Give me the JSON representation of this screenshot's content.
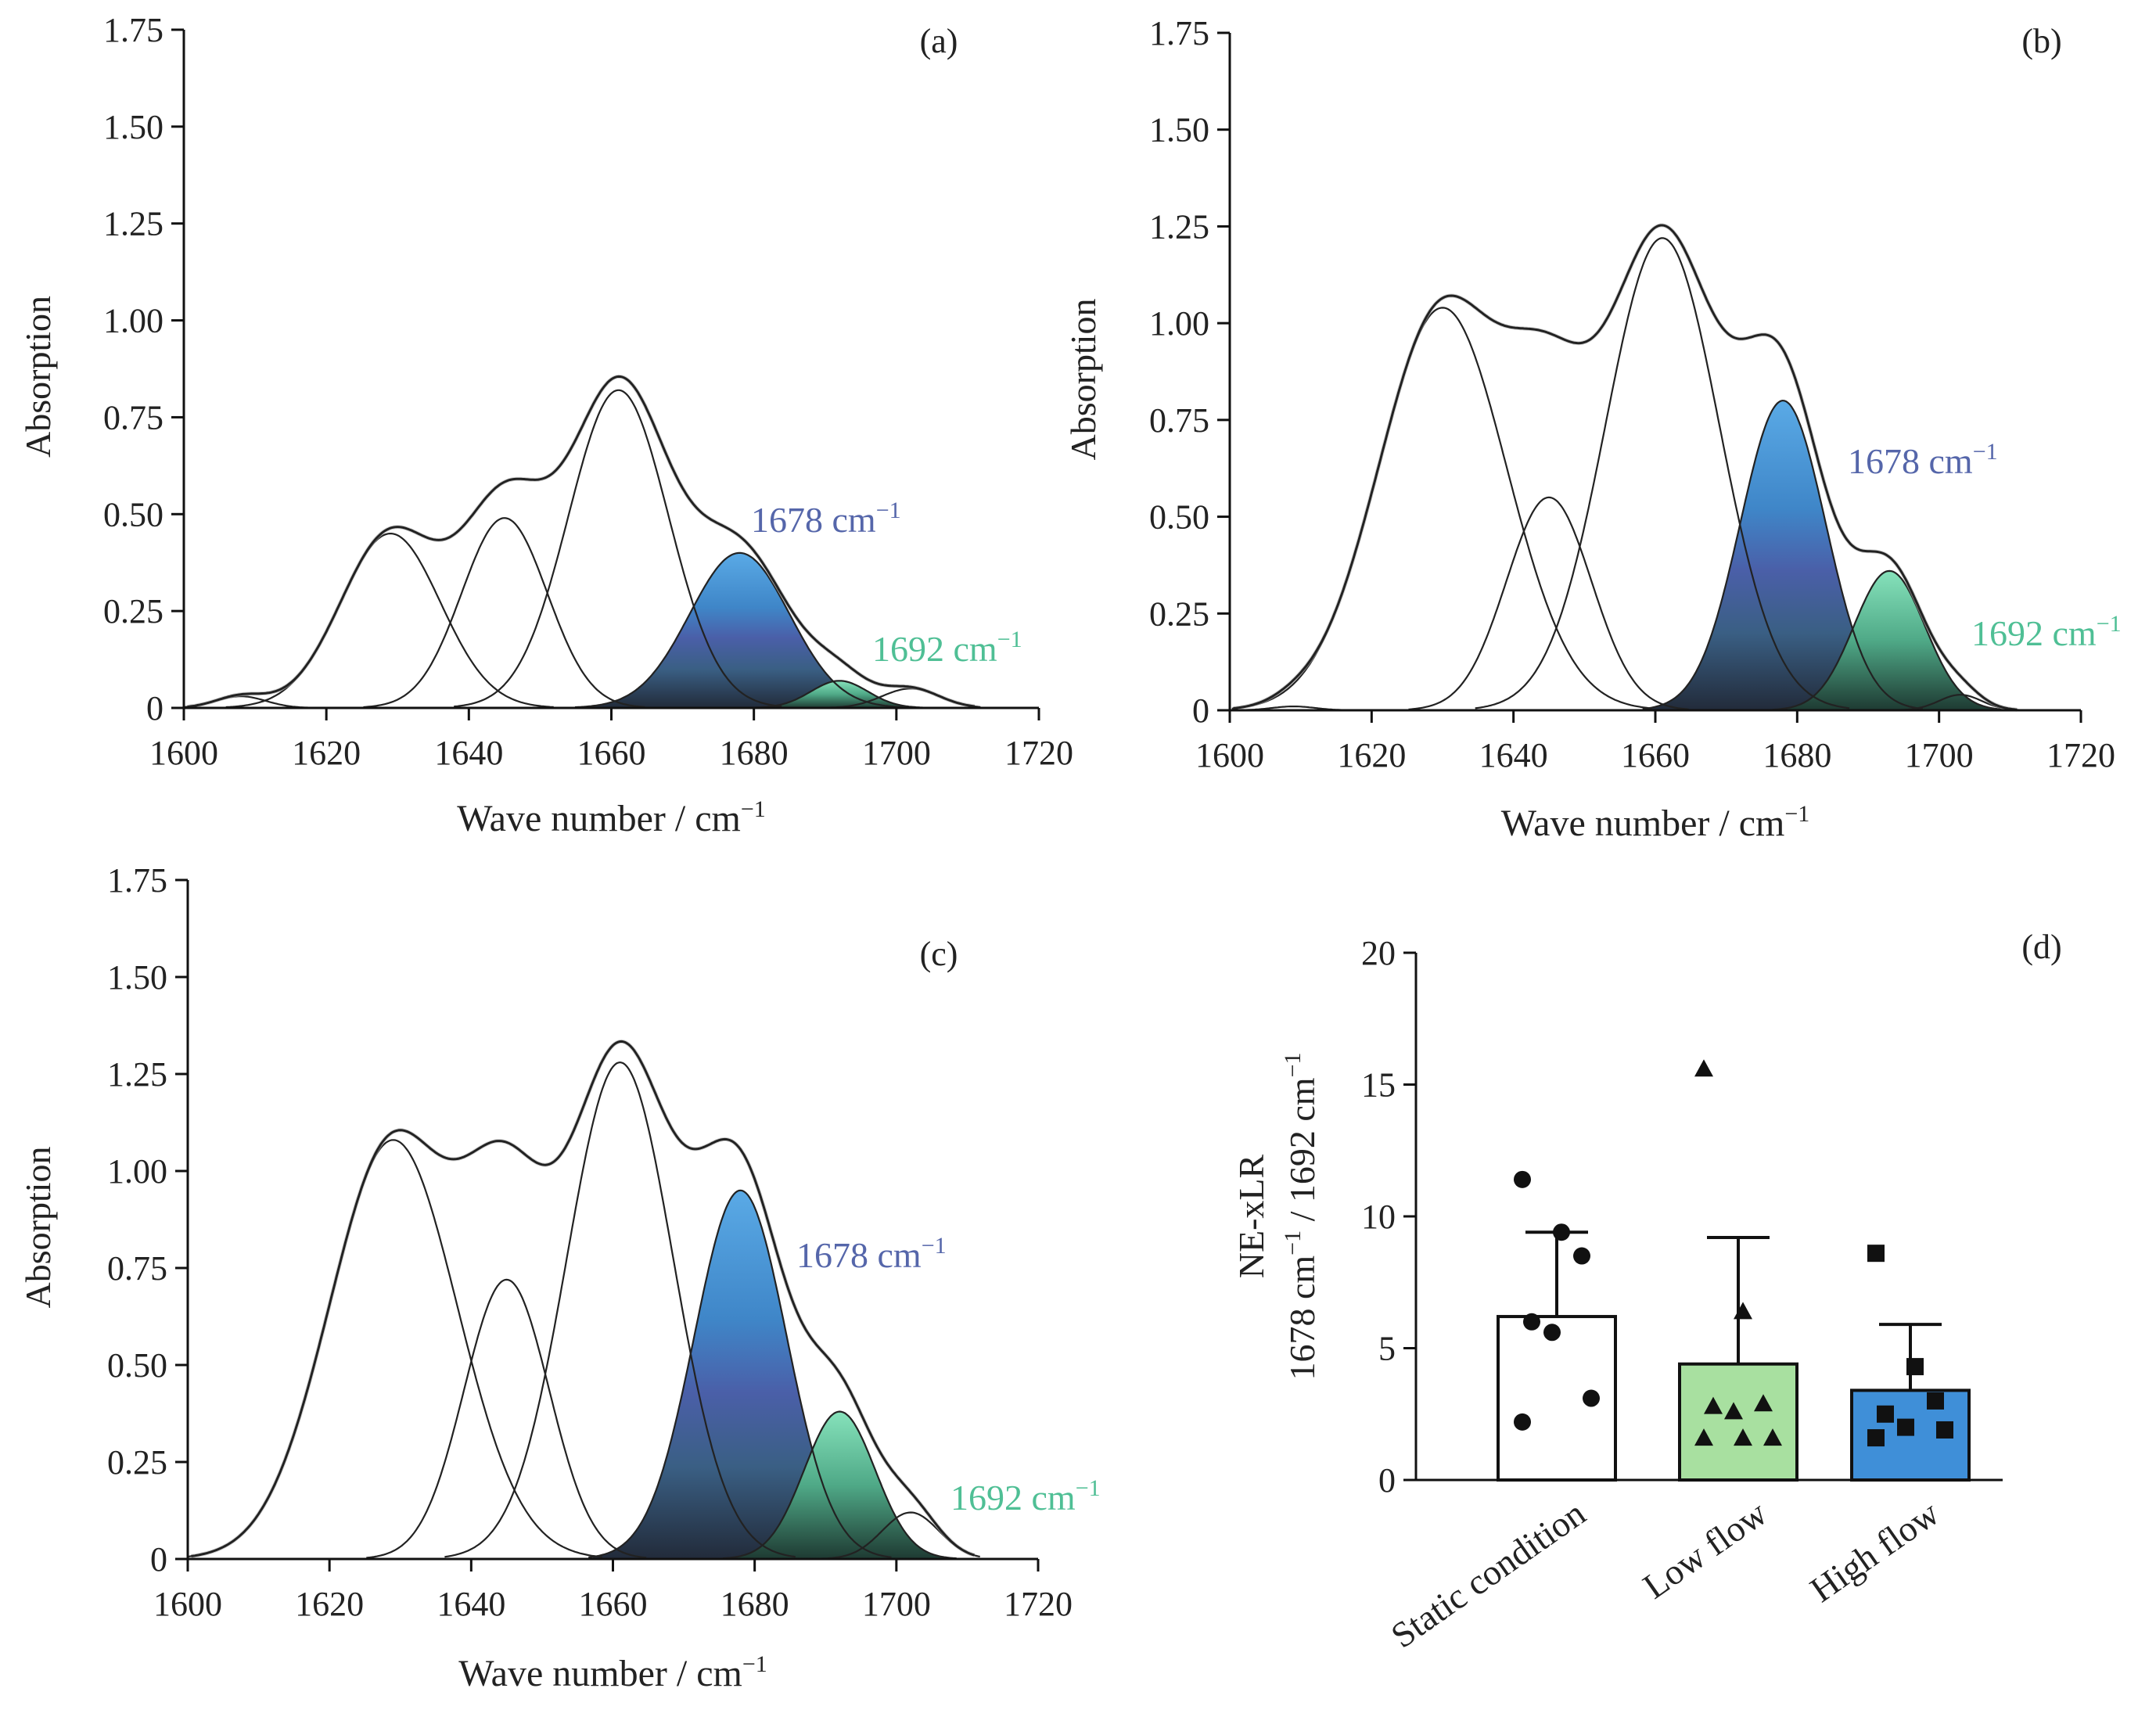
{
  "colors": {
    "axis": "#111111",
    "curve": "#222222",
    "band_1678_top": "#5aaae6",
    "band_1678_mid": "#2f6fb0",
    "band_1678_low": "#27416a",
    "band_1692_top": "#7fdcb4",
    "band_1692_low": "#2e6f5a",
    "label_1678": "#5566aa",
    "label_1692": "#4fbf95",
    "bar_static": "#ffffff",
    "bar_low": "#a8e0a0",
    "bar_high": "#3f8fd8"
  },
  "chart_data": [
    {
      "type": "area",
      "panel_label": "(a)",
      "xlabel": "Wave number / cm",
      "xlabel_sup": "−1",
      "ylabel": "Absorption",
      "xlim": [
        1600,
        1720
      ],
      "ylim": [
        0,
        1.75
      ],
      "x_ticks": [
        "1600",
        "1620",
        "1640",
        "1660",
        "1680",
        "1700",
        "1720"
      ],
      "y_ticks": [
        "0",
        "0.25",
        "0.50",
        "0.75",
        "1.00",
        "1.25",
        "1.50",
        "1.75"
      ],
      "components": [
        {
          "center": 1608,
          "height": 0.03,
          "width": 3.5
        },
        {
          "center": 1629,
          "height": 0.45,
          "width": 7
        },
        {
          "center": 1645,
          "height": 0.49,
          "width": 6
        },
        {
          "center": 1661,
          "height": 0.82,
          "width": 7
        },
        {
          "center": 1678,
          "height": 0.4,
          "width": 7,
          "filled": "blue",
          "label": "1678 cm",
          "label_sup": "−1"
        },
        {
          "center": 1692,
          "height": 0.07,
          "width": 4,
          "filled": "green",
          "label": "1692 cm",
          "label_sup": "−1"
        },
        {
          "center": 1702,
          "height": 0.05,
          "width": 4
        }
      ]
    },
    {
      "type": "area",
      "panel_label": "(b)",
      "xlabel": "Wave number / cm",
      "xlabel_sup": "−1",
      "ylabel": "Absorption",
      "xlim": [
        1600,
        1720
      ],
      "ylim": [
        0,
        1.75
      ],
      "x_ticks": [
        "1600",
        "1620",
        "1640",
        "1660",
        "1680",
        "1700",
        "1720"
      ],
      "y_ticks": [
        "0",
        "0.25",
        "0.50",
        "0.75",
        "1.00",
        "1.25",
        "1.50",
        "1.75"
      ],
      "components": [
        {
          "center": 1609,
          "height": 0.01,
          "width": 3
        },
        {
          "center": 1630,
          "height": 1.04,
          "width": 9
        },
        {
          "center": 1645,
          "height": 0.55,
          "width": 6
        },
        {
          "center": 1661,
          "height": 1.22,
          "width": 8
        },
        {
          "center": 1678,
          "height": 0.8,
          "width": 6,
          "filled": "blue",
          "label": "1678 cm",
          "label_sup": "−1"
        },
        {
          "center": 1693,
          "height": 0.36,
          "width": 5,
          "filled": "green",
          "label": "1692 cm",
          "label_sup": "−1"
        },
        {
          "center": 1703,
          "height": 0.04,
          "width": 3
        }
      ]
    },
    {
      "type": "area",
      "panel_label": "(c)",
      "xlabel": "Wave number / cm",
      "xlabel_sup": "−1",
      "ylabel": "Absorption",
      "xlim": [
        1600,
        1720
      ],
      "ylim": [
        0,
        1.75
      ],
      "x_ticks": [
        "1600",
        "1620",
        "1640",
        "1660",
        "1680",
        "1700",
        "1720"
      ],
      "y_ticks": [
        "0",
        "0.25",
        "0.50",
        "0.75",
        "1.00",
        "1.25",
        "1.50",
        "1.75"
      ],
      "components": [
        {
          "center": 1629,
          "height": 1.08,
          "width": 9
        },
        {
          "center": 1645,
          "height": 0.72,
          "width": 6
        },
        {
          "center": 1661,
          "height": 1.28,
          "width": 7.5
        },
        {
          "center": 1678,
          "height": 0.95,
          "width": 6.5,
          "filled": "blue",
          "label": "1678 cm",
          "label_sup": "−1"
        },
        {
          "center": 1692,
          "height": 0.38,
          "width": 5,
          "filled": "green",
          "label": "1692 cm",
          "label_sup": "−1"
        },
        {
          "center": 1702,
          "height": 0.12,
          "width": 4
        }
      ]
    },
    {
      "type": "bar",
      "panel_label": "(d)",
      "ylabel_line1": "NE-xLR",
      "ylabel_line2_parts": [
        "1678 cm",
        "−1",
        " / 1692 cm",
        "−1"
      ],
      "ylim": [
        0,
        20
      ],
      "y_ticks": [
        "0",
        "5",
        "10",
        "15",
        "20"
      ],
      "categories": [
        "Static condition",
        "Low flow",
        "High flow"
      ],
      "means": [
        6.2,
        4.4,
        3.4
      ],
      "error_upper": [
        9.4,
        9.2,
        5.9
      ],
      "markers": [
        "circle",
        "triangle",
        "square"
      ],
      "points": [
        [
          11.4,
          9.4,
          8.5,
          6.0,
          5.6,
          3.1,
          2.2
        ],
        [
          15.6,
          6.4,
          2.9,
          2.8,
          2.6,
          1.6,
          1.6,
          1.6
        ],
        [
          8.6,
          4.3,
          3.0,
          2.5,
          2.0,
          1.9,
          1.6
        ]
      ]
    }
  ]
}
